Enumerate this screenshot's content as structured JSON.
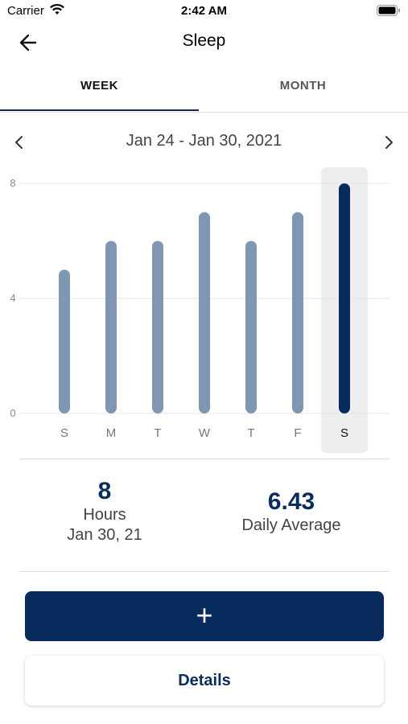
{
  "status_bar": {
    "carrier": "Carrier",
    "time": "2:42 AM"
  },
  "nav": {
    "title": "Sleep"
  },
  "tabs": [
    {
      "label": "WEEK",
      "selected": true
    },
    {
      "label": "MONTH",
      "selected": false
    }
  ],
  "date_nav": {
    "range": "Jan 24 - Jan 30, 2021"
  },
  "chart_data": {
    "type": "bar",
    "categories": [
      "S",
      "M",
      "T",
      "W",
      "T",
      "F",
      "S"
    ],
    "values": [
      5,
      6,
      6,
      7,
      6,
      7,
      8
    ],
    "ylim": [
      0,
      8
    ],
    "yticks": [
      "0",
      "4",
      "8"
    ],
    "highlighted_index": 6,
    "colors": {
      "bar": "#8097b3",
      "highlight": "#062b5c",
      "highlight_bg": "#eeeeee",
      "grid": "#e6e6e6"
    }
  },
  "summary": {
    "selected": {
      "value": "8",
      "unit": "Hours",
      "date": "Jan 30, 21"
    },
    "average": {
      "value": "6.43",
      "label": "Daily Average"
    }
  },
  "actions": {
    "add_label": "+",
    "details_label": "Details"
  }
}
